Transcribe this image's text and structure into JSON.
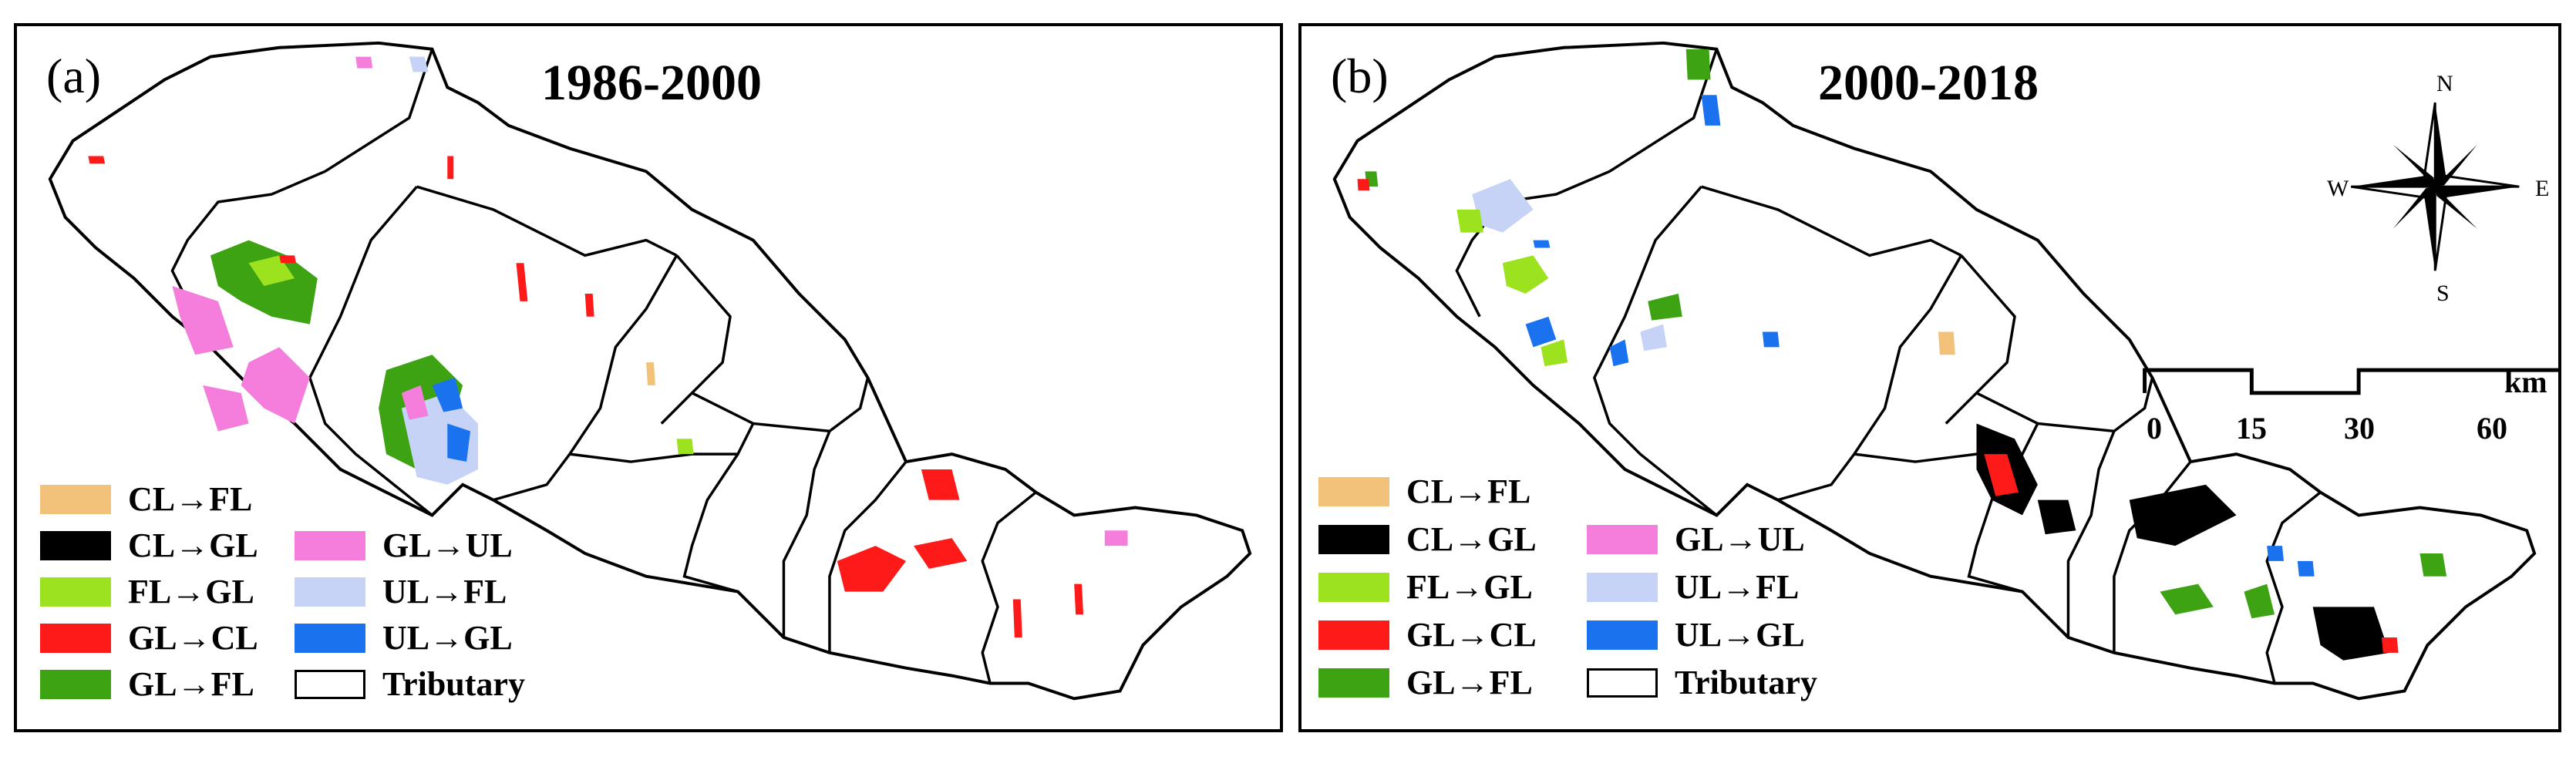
{
  "panels": [
    {
      "letter": "(a)",
      "period": "1986-2000",
      "legend": [
        {
          "label": "CL→FL",
          "color": "#f2c27a"
        },
        {
          "label": "CL→GL",
          "color": "#000000"
        },
        {
          "label": "FL→GL",
          "color": "#9de21e"
        },
        {
          "label": "GL→CL",
          "color": "#ff1a1a"
        },
        {
          "label": "GL→FL",
          "color": "#3da313"
        },
        {
          "label": "GL→UL",
          "color": "#f57ddc"
        },
        {
          "label": "UL→FL",
          "color": "#c6d3f7"
        },
        {
          "label": "UL→GL",
          "color": "#1a72ef"
        },
        {
          "label": "Tributary",
          "color": "#ffffff"
        }
      ]
    },
    {
      "letter": "(b)",
      "period": "2000-2018",
      "legend": [
        {
          "label": "CL→FL",
          "color": "#f2c27a"
        },
        {
          "label": "CL→GL",
          "color": "#000000"
        },
        {
          "label": "FL→GL",
          "color": "#9de21e"
        },
        {
          "label": "GL→CL",
          "color": "#ff1a1a"
        },
        {
          "label": "GL→FL",
          "color": "#3da313"
        },
        {
          "label": "GL→UL",
          "color": "#f57ddc"
        },
        {
          "label": "UL→FL",
          "color": "#c6d3f7"
        },
        {
          "label": "UL→GL",
          "color": "#1a72ef"
        },
        {
          "label": "Tributary",
          "color": "#ffffff"
        }
      ]
    }
  ],
  "compass": {
    "n": "N",
    "s": "S",
    "e": "E",
    "w": "W"
  },
  "scale_bar": {
    "ticks": [
      "0",
      "15",
      "30",
      "60"
    ],
    "unit": "km"
  }
}
